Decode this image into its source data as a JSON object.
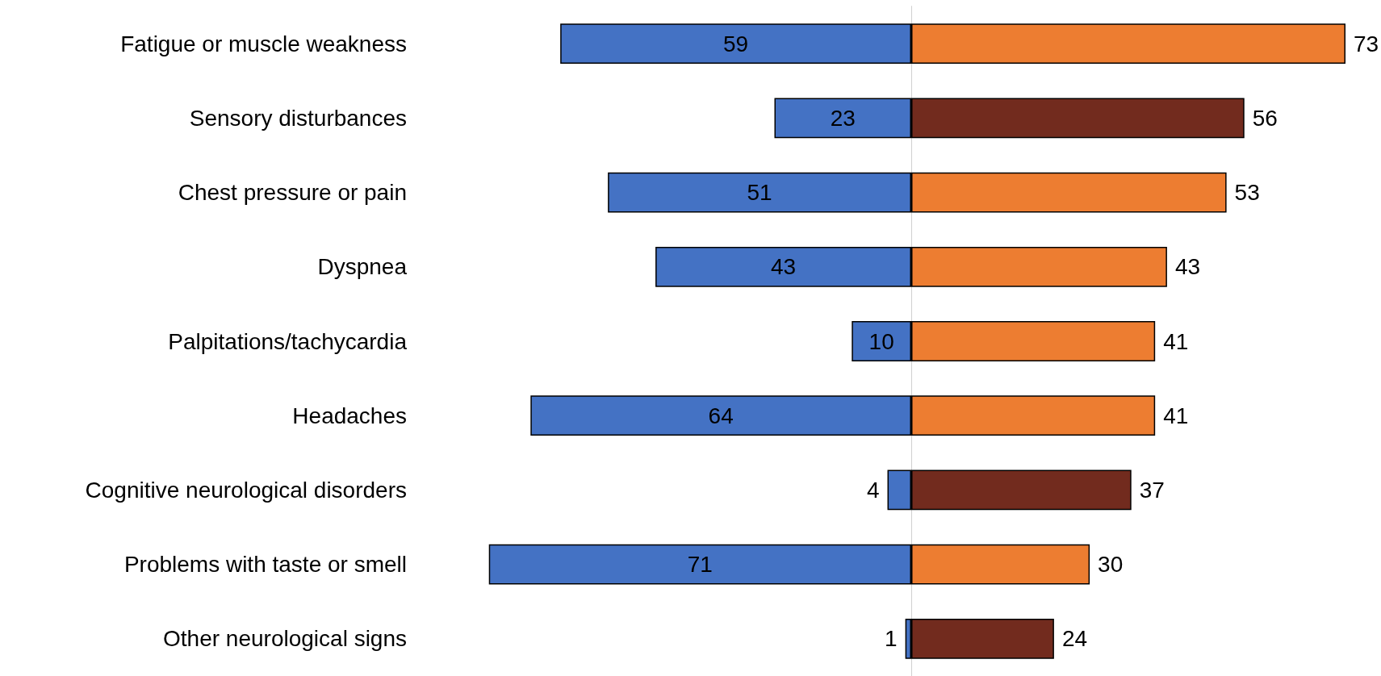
{
  "chart_data": [
    {
      "type": "bar",
      "orientation": "horizontal",
      "tick_labels": "y",
      "categories": [
        "Fatigue or muscle weakness",
        "Sensory disturbances",
        "Chest pressure or pain",
        "Dyspnea",
        "Palpitations/tachycardia",
        "Headaches",
        "Cognitive neurological disorders",
        "Problems with taste or smell",
        "Other neurological signs"
      ],
      "xlim": [
        71,
        0
      ],
      "series": [
        {
          "color": "#4472c4",
          "values": [
            59,
            23,
            51,
            43,
            10,
            64,
            4,
            71,
            1
          ]
        }
      ],
      "data_labels": true,
      "grid": false
    },
    {
      "type": "bar",
      "orientation": "horizontal",
      "tick_labels": false,
      "categories": [
        null,
        null,
        null,
        null,
        null,
        null,
        null,
        null,
        null
      ],
      "series": [
        {
          "colors": [
            "#ed7d31",
            "#722b1e",
            "#ed7d31",
            "#ed7d31",
            "#ed7d31",
            "#ed7d31",
            "#722b1e",
            "#ed7d31",
            "#722b1e"
          ],
          "values": [
            73,
            56,
            53,
            43,
            41,
            41,
            37,
            30,
            24
          ]
        }
      ],
      "data_labels": true,
      "grid": false
    }
  ]
}
